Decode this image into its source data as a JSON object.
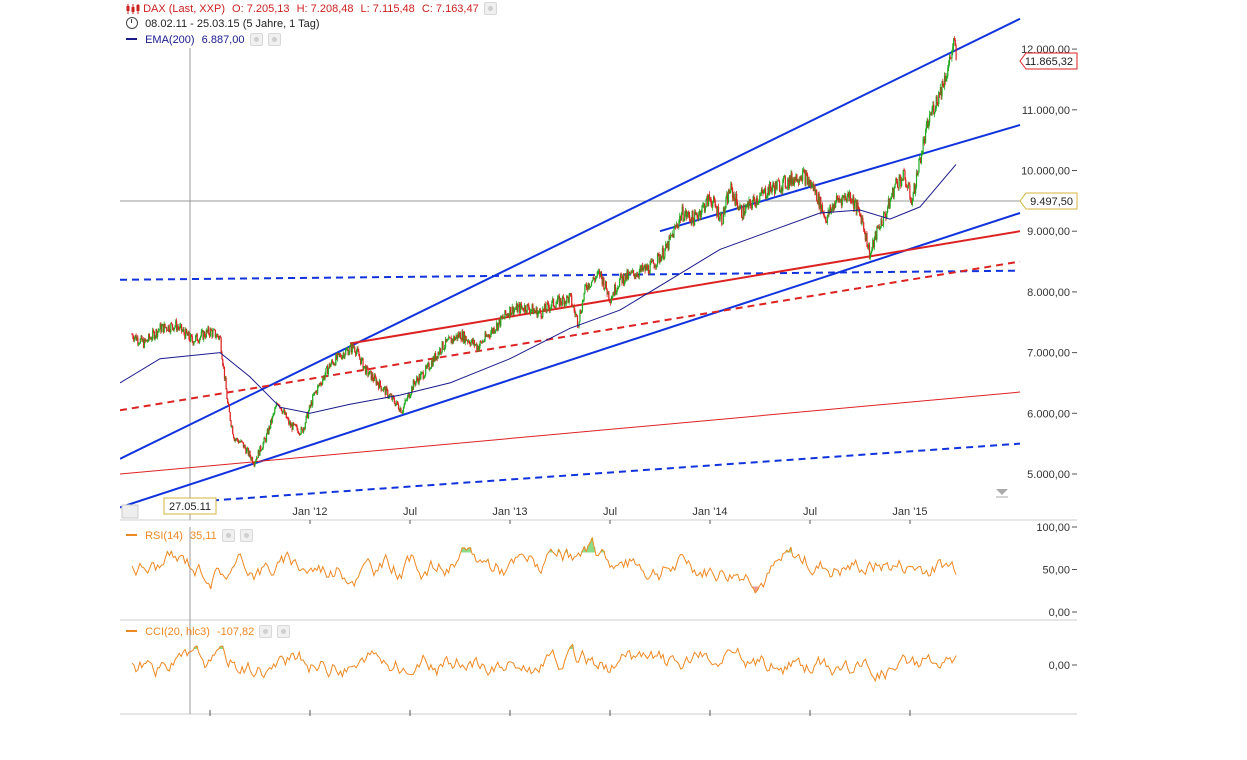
{
  "header": {
    "symbol": "DAX (Last, XXP)",
    "open": "O: 7.205,13",
    "high": "H: 7.208,48",
    "low": "L: 7.115,48",
    "close": "C: 7.163,47",
    "period": "08.02.11 - 25.03.15 (5 Jahre, 1 Tag)",
    "ema_label": "EMA(200)",
    "ema_value": "6.887,00",
    "symbol_color": "#cc2222",
    "ema_color": "#1a1a8c"
  },
  "crosshair": {
    "date_label": "27.05.11",
    "value_label": "9.497,50"
  },
  "last_price_label": "11.865,32",
  "rsi": {
    "label": "RSI(14)",
    "value": "35,11",
    "color": "#ee8822"
  },
  "cci": {
    "label": "CCI(20, hlc3)",
    "value": "-107,82",
    "color": "#ee8822"
  },
  "chart_data": {
    "type": "candlestick",
    "x_ticks": [
      "Jan '12",
      "Jul",
      "Jan '13",
      "Jul",
      "Jan '14",
      "Jul",
      "Jan '15"
    ],
    "y_ticks": [
      "5.000,00",
      "6.000,00",
      "7.000,00",
      "8.000,00",
      "9.000,00",
      "10.000,00",
      "11.000,00",
      "12.000,00"
    ],
    "ylim": [
      4500,
      12500
    ],
    "close_path": [
      [
        2011.11,
        7300
      ],
      [
        2011.17,
        7150
      ],
      [
        2011.25,
        7400
      ],
      [
        2011.33,
        7450
      ],
      [
        2011.41,
        7200
      ],
      [
        2011.5,
        7350
      ],
      [
        2011.55,
        7250
      ],
      [
        2011.59,
        6100
      ],
      [
        2011.62,
        5600
      ],
      [
        2011.66,
        5500
      ],
      [
        2011.72,
        5200
      ],
      [
        2011.78,
        5600
      ],
      [
        2011.84,
        6200
      ],
      [
        2011.9,
        5800
      ],
      [
        2011.96,
        5700
      ],
      [
        2012.02,
        6300
      ],
      [
        2012.1,
        6800
      ],
      [
        2012.17,
        7000
      ],
      [
        2012.22,
        7100
      ],
      [
        2012.28,
        6700
      ],
      [
        2012.34,
        6500
      ],
      [
        2012.42,
        6200
      ],
      [
        2012.46,
        6050
      ],
      [
        2012.52,
        6500
      ],
      [
        2012.58,
        6700
      ],
      [
        2012.66,
        7100
      ],
      [
        2012.75,
        7300
      ],
      [
        2012.84,
        7100
      ],
      [
        2012.92,
        7400
      ],
      [
        2013.0,
        7700
      ],
      [
        2013.08,
        7750
      ],
      [
        2013.15,
        7650
      ],
      [
        2013.21,
        7800
      ],
      [
        2013.3,
        7900
      ],
      [
        2013.34,
        7500
      ],
      [
        2013.38,
        8100
      ],
      [
        2013.45,
        8300
      ],
      [
        2013.5,
        7900
      ],
      [
        2013.55,
        8200
      ],
      [
        2013.62,
        8300
      ],
      [
        2013.7,
        8400
      ],
      [
        2013.78,
        8700
      ],
      [
        2013.86,
        9300
      ],
      [
        2013.92,
        9200
      ],
      [
        2014.0,
        9550
      ],
      [
        2014.06,
        9200
      ],
      [
        2014.1,
        9700
      ],
      [
        2014.16,
        9300
      ],
      [
        2014.22,
        9500
      ],
      [
        2014.3,
        9700
      ],
      [
        2014.38,
        9800
      ],
      [
        2014.46,
        9950
      ],
      [
        2014.52,
        9700
      ],
      [
        2014.58,
        9200
      ],
      [
        2014.63,
        9500
      ],
      [
        2014.7,
        9600
      ],
      [
        2014.76,
        9200
      ],
      [
        2014.8,
        8600
      ],
      [
        2014.84,
        9050
      ],
      [
        2014.88,
        9300
      ],
      [
        2014.93,
        9800
      ],
      [
        2014.97,
        9900
      ],
      [
        2015.01,
        9500
      ],
      [
        2015.05,
        10200
      ],
      [
        2015.1,
        10900
      ],
      [
        2015.15,
        11300
      ],
      [
        2015.19,
        11700
      ],
      [
        2015.22,
        12100
      ],
      [
        2015.23,
        11865
      ]
    ],
    "ema_200_path": [
      [
        2011.05,
        6500
      ],
      [
        2011.25,
        6900
      ],
      [
        2011.55,
        7000
      ],
      [
        2011.7,
        6600
      ],
      [
        2011.85,
        6100
      ],
      [
        2012.0,
        6000
      ],
      [
        2012.2,
        6150
      ],
      [
        2012.45,
        6300
      ],
      [
        2012.7,
        6500
      ],
      [
        2013.0,
        6900
      ],
      [
        2013.3,
        7400
      ],
      [
        2013.55,
        7700
      ],
      [
        2013.8,
        8200
      ],
      [
        2014.05,
        8700
      ],
      [
        2014.3,
        9000
      ],
      [
        2014.55,
        9300
      ],
      [
        2014.75,
        9350
      ],
      [
        2014.9,
        9200
      ],
      [
        2015.05,
        9400
      ],
      [
        2015.23,
        10100
      ]
    ],
    "trend_lines": [
      {
        "color": "#1133dd",
        "dashed": false,
        "from": [
          2011.05,
          5250
        ],
        "to": [
          2015.55,
          12500
        ]
      },
      {
        "color": "#1133dd",
        "dashed": false,
        "from": [
          2011.05,
          4450
        ],
        "to": [
          2015.55,
          9300
        ]
      },
      {
        "color": "#1133dd",
        "dashed": false,
        "from": [
          2013.75,
          9000
        ],
        "to": [
          2015.55,
          10750
        ]
      },
      {
        "color": "#1133dd",
        "dashed": true,
        "from": [
          2011.05,
          8200
        ],
        "to": [
          2015.55,
          8350
        ]
      },
      {
        "color": "#1133dd",
        "dashed": true,
        "from": [
          2011.45,
          4550
        ],
        "to": [
          2015.55,
          5500
        ]
      },
      {
        "color": "#dd2222",
        "dashed": false,
        "from": [
          2012.2,
          7150
        ],
        "to": [
          2015.55,
          9000
        ]
      },
      {
        "color": "#dd2222",
        "dashed": true,
        "from": [
          2011.05,
          6050
        ],
        "to": [
          2015.55,
          8500
        ]
      },
      {
        "color": "#dd2222",
        "dashed": false,
        "thin": true,
        "from": [
          2011.05,
          5000
        ],
        "to": [
          2015.55,
          6350
        ]
      }
    ],
    "rsi_ticks": [
      "100,00",
      "50,00",
      "0,00"
    ],
    "cci_ticks": [
      "0,00"
    ]
  }
}
